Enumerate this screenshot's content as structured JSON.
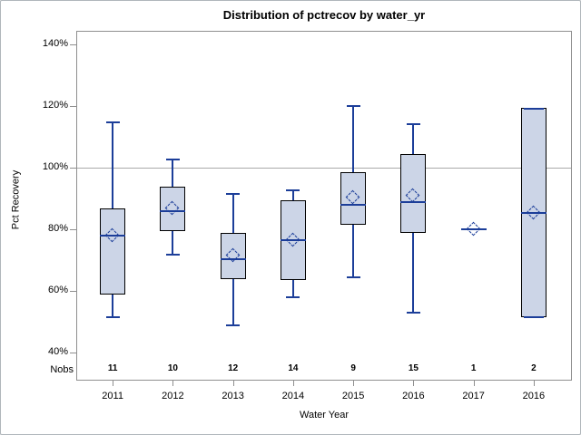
{
  "figure": {
    "title": "Distribution of pctrecov by water_yr",
    "ylabel": "Pct Recovery",
    "xlabel": "Water Year",
    "nobs_row_label": "Nobs"
  },
  "chart_data": {
    "type": "boxplot",
    "title": "Distribution of pctrecov by water_yr",
    "xlabel": "Water Year",
    "ylabel": "Pct Recovery",
    "ylim": [
      31,
      144.5
    ],
    "yticks": [
      40,
      60,
      80,
      100,
      120,
      140
    ],
    "ytick_labels": [
      "40%",
      "60%",
      "80%",
      "100%",
      "120%",
      "140%"
    ],
    "reference_line": 100,
    "grid": false,
    "legend": "none",
    "mean_marker": "diamond",
    "nobs_row_label": "Nobs",
    "categories": [
      "2011",
      "2012",
      "2013",
      "2014",
      "2015",
      "2016",
      "2017",
      "2016"
    ],
    "nobs": [
      "11",
      "10",
      "12",
      "14",
      "9",
      "15",
      "1",
      "2"
    ],
    "series": [
      {
        "category": "2011",
        "nobs": 11,
        "whisker_low": 51.5,
        "q1": 59,
        "median": 78,
        "mean": 78,
        "q3": 87,
        "whisker_high": 115
      },
      {
        "category": "2012",
        "nobs": 10,
        "whisker_low": 72,
        "q1": 79.5,
        "median": 86,
        "mean": 87,
        "q3": 94,
        "whisker_high": 103
      },
      {
        "category": "2013",
        "nobs": 12,
        "whisker_low": 49,
        "q1": 64,
        "median": 70.5,
        "mean": 71.5,
        "q3": 79,
        "whisker_high": 92
      },
      {
        "category": "2014",
        "nobs": 14,
        "whisker_low": 58,
        "q1": 63.5,
        "median": 76.5,
        "mean": 76.5,
        "q3": 89.5,
        "whisker_high": 93
      },
      {
        "category": "2015",
        "nobs": 9,
        "whisker_low": 64.5,
        "q1": 81.5,
        "median": 88,
        "mean": 90.5,
        "q3": 98.5,
        "whisker_high": 120.5
      },
      {
        "category": "2016",
        "nobs": 15,
        "whisker_low": 53,
        "q1": 79,
        "median": 89,
        "mean": 91,
        "q3": 104.5,
        "whisker_high": 114.5
      },
      {
        "category": "2017",
        "nobs": 1,
        "whisker_low": null,
        "q1": null,
        "median": 80,
        "mean": 80,
        "q3": null,
        "whisker_high": null
      },
      {
        "category": "2016",
        "nobs": 2,
        "whisker_low": 51.5,
        "q1": 51.5,
        "median": 85.5,
        "mean": 85.5,
        "q3": 119.5,
        "whisker_high": 119.5
      }
    ],
    "colors": {
      "box_fill": "#ccd5e7",
      "box_border": "#000000",
      "line_blue": "#1c3e99",
      "reference_line": "#a9a9a9",
      "axis_frame": "#8f8f8f",
      "background": "#ffffff"
    }
  }
}
